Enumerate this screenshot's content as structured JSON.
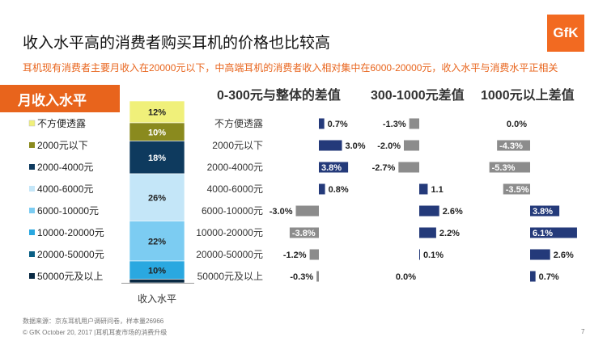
{
  "header": {
    "title": "收入水平高的消费者购买耳机的价格也比较高",
    "subtitle": "耳机现有消费者主要月收入在20000元以下，中高端耳机的消费者收入相对集中在6000-20000元，收入水平与消费水平正相关",
    "logo_text": "GfK"
  },
  "section_tab": "月收入水平",
  "footer": {
    "source": "数据来源：京东耳机用户调研问卷，样本量26966",
    "copyright": "© GfK October 20, 2017 |耳机耳麦市场的消费升级",
    "page_number": "7"
  },
  "colors": {
    "accent": "#e8641c",
    "navy": "#243a7a",
    "gray": "#8c8c8c"
  },
  "chart_data": [
    {
      "type": "bar",
      "stacked": true,
      "xlabel": "收入水平",
      "legend_position": "left",
      "categories": [
        "收入水平"
      ],
      "series": [
        {
          "name": "不方便透露",
          "value": 12,
          "label": "12%",
          "color": "#f0f07a"
        },
        {
          "name": "2000元以下",
          "value": 10,
          "label": "10%",
          "color": "#8a8a1e"
        },
        {
          "name": "2000-4000元",
          "value": 18,
          "label": "18%",
          "color": "#0e3a5e"
        },
        {
          "name": "4000-6000元",
          "value": 26,
          "label": "26%",
          "color": "#c4e6f8"
        },
        {
          "name": "6000-10000元",
          "value": 22,
          "label": "22%",
          "color": "#7cccf2"
        },
        {
          "name": "10000-20000元",
          "value": 10,
          "label": "10%",
          "color": "#2aa8e0"
        },
        {
          "name": "20000-50000元",
          "value": 0,
          "label": "",
          "color": "#0a5f85"
        },
        {
          "name": "50000元及以上",
          "value": 2,
          "label": "",
          "color": "#0a2a44"
        }
      ]
    },
    {
      "type": "bar",
      "orientation": "horizontal",
      "diverging": true,
      "panels": [
        {
          "title": "0-300元与整体的差值",
          "values": [
            0.7,
            3.0,
            3.8,
            0.8,
            -3.0,
            -3.8,
            -1.2,
            -0.3
          ],
          "labels": [
            "0.7%",
            "3.0%",
            "3.8%",
            "0.8%",
            "-3.0%",
            "-3.8%",
            "-1.2%",
            "-0.3%"
          ]
        },
        {
          "title": "300-1000元差值",
          "values": [
            -1.3,
            -2.0,
            -2.7,
            1.1,
            2.6,
            2.2,
            0.1,
            0.0
          ],
          "labels": [
            "-1.3%",
            "-2.0%",
            "-2.7%",
            "1.1",
            "2.6%",
            "2.2%",
            "0.1%",
            "0.0%"
          ]
        },
        {
          "title": "1000元以上差值",
          "values": [
            0.0,
            -4.3,
            -5.3,
            -3.5,
            3.8,
            6.1,
            2.6,
            0.7
          ],
          "labels": [
            "0.0%",
            "-4.3%",
            "-5.3%",
            "-3.5%",
            "3.8%",
            "6.1%",
            "2.6%",
            "0.7%"
          ]
        }
      ],
      "row_labels": [
        "不方便透露",
        "2000元以下",
        "2000-4000元",
        "4000-6000元",
        "6000-10000元",
        "10000-20000元",
        "20000-50000元",
        "50000元及以上"
      ]
    }
  ]
}
